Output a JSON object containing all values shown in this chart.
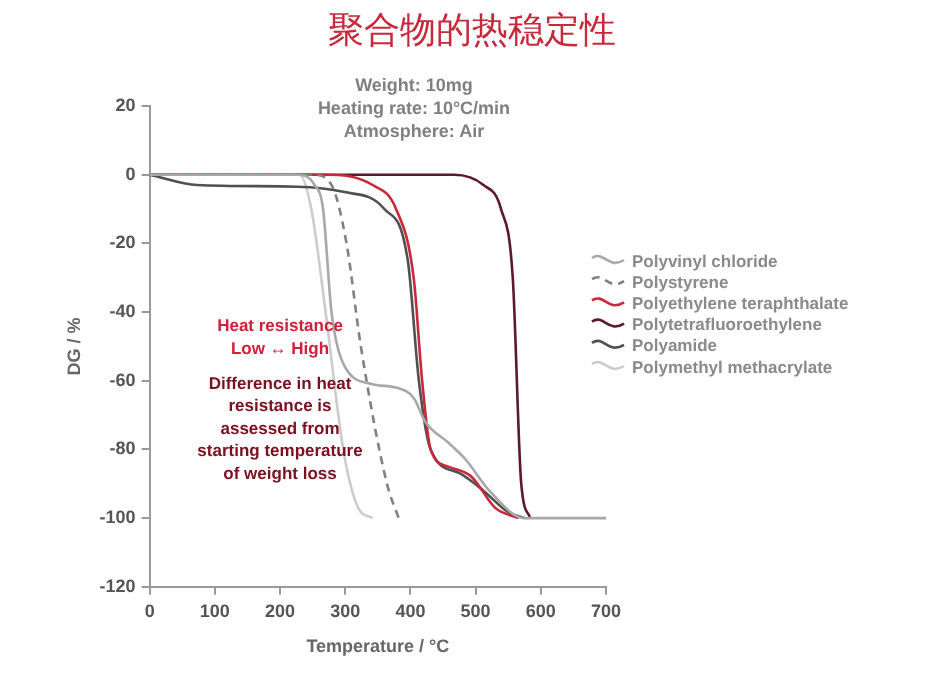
{
  "chart_data": {
    "type": "line",
    "title": "聚合物的热稳定性",
    "xlabel": "Temperature / °C",
    "ylabel": "DG / %",
    "xlim": [
      0,
      700
    ],
    "xticks": [
      0,
      100,
      200,
      300,
      400,
      500,
      600,
      700
    ],
    "ylim": [
      -120,
      20
    ],
    "yticks": [
      -120,
      -100,
      -80,
      -60,
      -40,
      -20,
      0,
      20
    ],
    "grid": false,
    "legend": "right",
    "marker": "none",
    "annotations": [
      "Weight: 10mg",
      "Heating rate: 10°C/min",
      "Atmosphere: Air",
      "Heat resistance",
      "Low ↔ High",
      "Difference in heat resistance is assessed from starting temperature of weight loss"
    ],
    "series": [
      {
        "name": "Polyvinyl chloride",
        "color": "#a8a8a8",
        "x": [
          0,
          226,
          253,
          266,
          279,
          297,
          342,
          378,
          405,
          423,
          458,
          485,
          521,
          575,
          700
        ],
        "values": [
          0,
          0,
          -3,
          -10,
          -40,
          -55,
          -61,
          -62,
          -65,
          -72,
          -78,
          -83,
          -92,
          -100,
          -100
        ]
      },
      {
        "name": "Polystyrene",
        "color": "#808080",
        "line_style": "dashed",
        "x": [
          0,
          250,
          279,
          302,
          324,
          364,
          382
        ],
        "values": [
          0,
          0,
          -3,
          -20,
          -50,
          -90,
          -100
        ]
      },
      {
        "name": "Polyethylene teraphthalate",
        "color": "#c8283c",
        "x": [
          0,
          270,
          342,
          378,
          405,
          418,
          431,
          458,
          494,
          530,
          566
        ],
        "values": [
          0,
          0,
          -3,
          -10,
          -30,
          -60,
          -80,
          -85,
          -88,
          -97,
          -100
        ]
      },
      {
        "name": "Polytetrafluoroethylene",
        "color": "#5a1a2a",
        "x": [
          0,
          467,
          512,
          539,
          557,
          570,
          584
        ],
        "values": [
          0,
          0,
          -3,
          -10,
          -30,
          -90,
          -100
        ]
      },
      {
        "name": "Polyamide",
        "color": "#505050",
        "x": [
          0,
          73,
          226,
          297,
          360,
          396,
          413,
          431,
          476,
          512,
          548,
          575
        ],
        "values": [
          0,
          -3,
          -3.5,
          -5,
          -10,
          -25,
          -60,
          -80,
          -87,
          -92,
          -98,
          -100
        ]
      },
      {
        "name": "Polymethyl methacrylate",
        "color": "#cccccc",
        "x": [
          0,
          230,
          248,
          270,
          297,
          320,
          342
        ],
        "values": [
          0,
          0,
          -10,
          -40,
          -80,
          -97,
          -100
        ]
      }
    ]
  }
}
